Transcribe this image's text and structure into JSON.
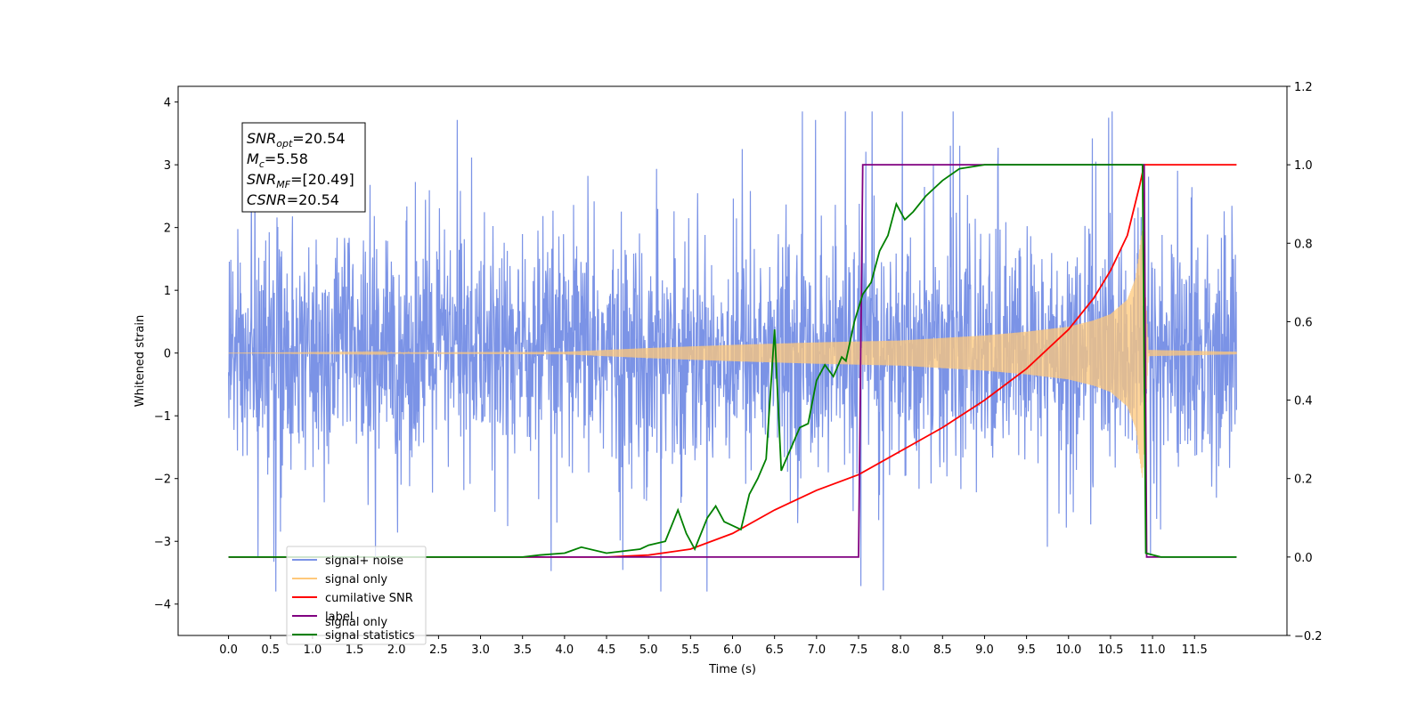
{
  "chart_data": {
    "type": "line",
    "xlabel": "Time (s)",
    "ylabel": "Whitened strain",
    "xlim": [
      -0.6,
      12.6
    ],
    "ylim": [
      -4.5,
      4.25
    ],
    "y2lim": [
      -0.2,
      1.2
    ],
    "x_ticks": [
      "0.0",
      "0.5",
      "1.0",
      "1.5",
      "2.0",
      "2.5",
      "3.0",
      "3.5",
      "4.0",
      "4.5",
      "5.0",
      "5.5",
      "6.0",
      "6.5",
      "7.0",
      "7.5",
      "8.0",
      "8.5",
      "9.0",
      "9.5",
      "10.0",
      "10.5",
      "11.0",
      "11.5"
    ],
    "y_ticks": [
      "4",
      "3",
      "2",
      "1",
      "0",
      "−1",
      "−2",
      "−3",
      "−4"
    ],
    "y2_ticks": [
      "1.2",
      "1.0",
      "0.8",
      "0.6",
      "0.4",
      "0.2",
      "0.0",
      "−0.2"
    ],
    "annotation": {
      "lines": [
        {
          "base": "SNR",
          "sub": "opt",
          "rest": "=20.54"
        },
        {
          "base": "M",
          "sub": "c",
          "rest": "=5.58"
        },
        {
          "base": "SNR",
          "sub": "MF",
          "rest": "=[20.49]"
        },
        {
          "base": "CSNR",
          "sub": "",
          "rest": "=20.54"
        }
      ]
    },
    "legend": {
      "position": "lower-left",
      "entries": [
        {
          "label": "signal+ noise",
          "color": "#7b93e6"
        },
        {
          "label": "signal only",
          "color": "#ffc87a"
        },
        {
          "label": "cumilative SNR",
          "color": "#ff0000"
        },
        {
          "label": "label",
          "color": "#800080"
        },
        {
          "label": "signal statistics",
          "color": "#008000"
        }
      ],
      "hidden_text": [
        "signal only"
      ]
    },
    "series": [
      {
        "name": "signal+ noise",
        "axis": "left",
        "color": "#7b93e6",
        "description_range": [
          0.0,
          12.0
        ],
        "noise_amplitude": 2.5,
        "peak_max": 3.85,
        "peak_min": -3.8
      },
      {
        "name": "signal only",
        "axis": "left",
        "color": "#ffc87a",
        "envelope": {
          "x": [
            0.0,
            4.0,
            5.0,
            6.0,
            7.0,
            8.0,
            9.0,
            9.5,
            10.0,
            10.3,
            10.5,
            10.7,
            10.8,
            10.88,
            10.95,
            12.0
          ],
          "amp": [
            0.0,
            0.02,
            0.08,
            0.13,
            0.17,
            0.2,
            0.28,
            0.34,
            0.42,
            0.52,
            0.62,
            0.85,
            1.2,
            2.0,
            0.05,
            0.02
          ]
        }
      },
      {
        "name": "cumilative SNR",
        "axis": "right",
        "color": "#ff0000",
        "x": [
          0.0,
          4.5,
          5.0,
          5.5,
          6.0,
          6.5,
          7.0,
          7.5,
          8.0,
          8.5,
          9.0,
          9.5,
          10.0,
          10.3,
          10.5,
          10.7,
          10.85,
          10.9,
          11.0,
          12.0
        ],
        "values": [
          0.0,
          0.0,
          0.005,
          0.02,
          0.06,
          0.12,
          0.17,
          0.21,
          0.27,
          0.33,
          0.4,
          0.48,
          0.58,
          0.66,
          0.73,
          0.82,
          0.95,
          1.0,
          1.0,
          1.0
        ]
      },
      {
        "name": "label",
        "axis": "right",
        "color": "#800080",
        "x": [
          0.0,
          7.5,
          7.55,
          10.9,
          10.93,
          12.0
        ],
        "values": [
          0.0,
          0.0,
          1.0,
          1.0,
          0.0,
          0.0
        ]
      },
      {
        "name": "signal statistics",
        "axis": "right",
        "color": "#008000",
        "x": [
          0.0,
          3.0,
          3.5,
          3.7,
          4.0,
          4.2,
          4.5,
          4.9,
          5.0,
          5.2,
          5.35,
          5.45,
          5.55,
          5.7,
          5.8,
          5.9,
          6.0,
          6.1,
          6.2,
          6.3,
          6.4,
          6.5,
          6.58,
          6.7,
          6.8,
          6.9,
          7.0,
          7.1,
          7.2,
          7.3,
          7.35,
          7.45,
          7.55,
          7.65,
          7.75,
          7.85,
          7.95,
          8.05,
          8.15,
          8.3,
          8.5,
          8.7,
          9.0,
          9.5,
          10.0,
          10.5,
          10.88,
          10.92,
          11.1,
          12.0
        ],
        "values": [
          0.0,
          0.0,
          0.0,
          0.005,
          0.01,
          0.025,
          0.01,
          0.02,
          0.03,
          0.04,
          0.12,
          0.06,
          0.02,
          0.1,
          0.13,
          0.09,
          0.08,
          0.07,
          0.16,
          0.2,
          0.25,
          0.58,
          0.22,
          0.28,
          0.33,
          0.34,
          0.45,
          0.49,
          0.46,
          0.51,
          0.5,
          0.6,
          0.67,
          0.7,
          0.78,
          0.82,
          0.9,
          0.86,
          0.88,
          0.92,
          0.96,
          0.99,
          1.0,
          1.0,
          1.0,
          1.0,
          1.0,
          0.01,
          0.0,
          0.0
        ]
      }
    ]
  }
}
